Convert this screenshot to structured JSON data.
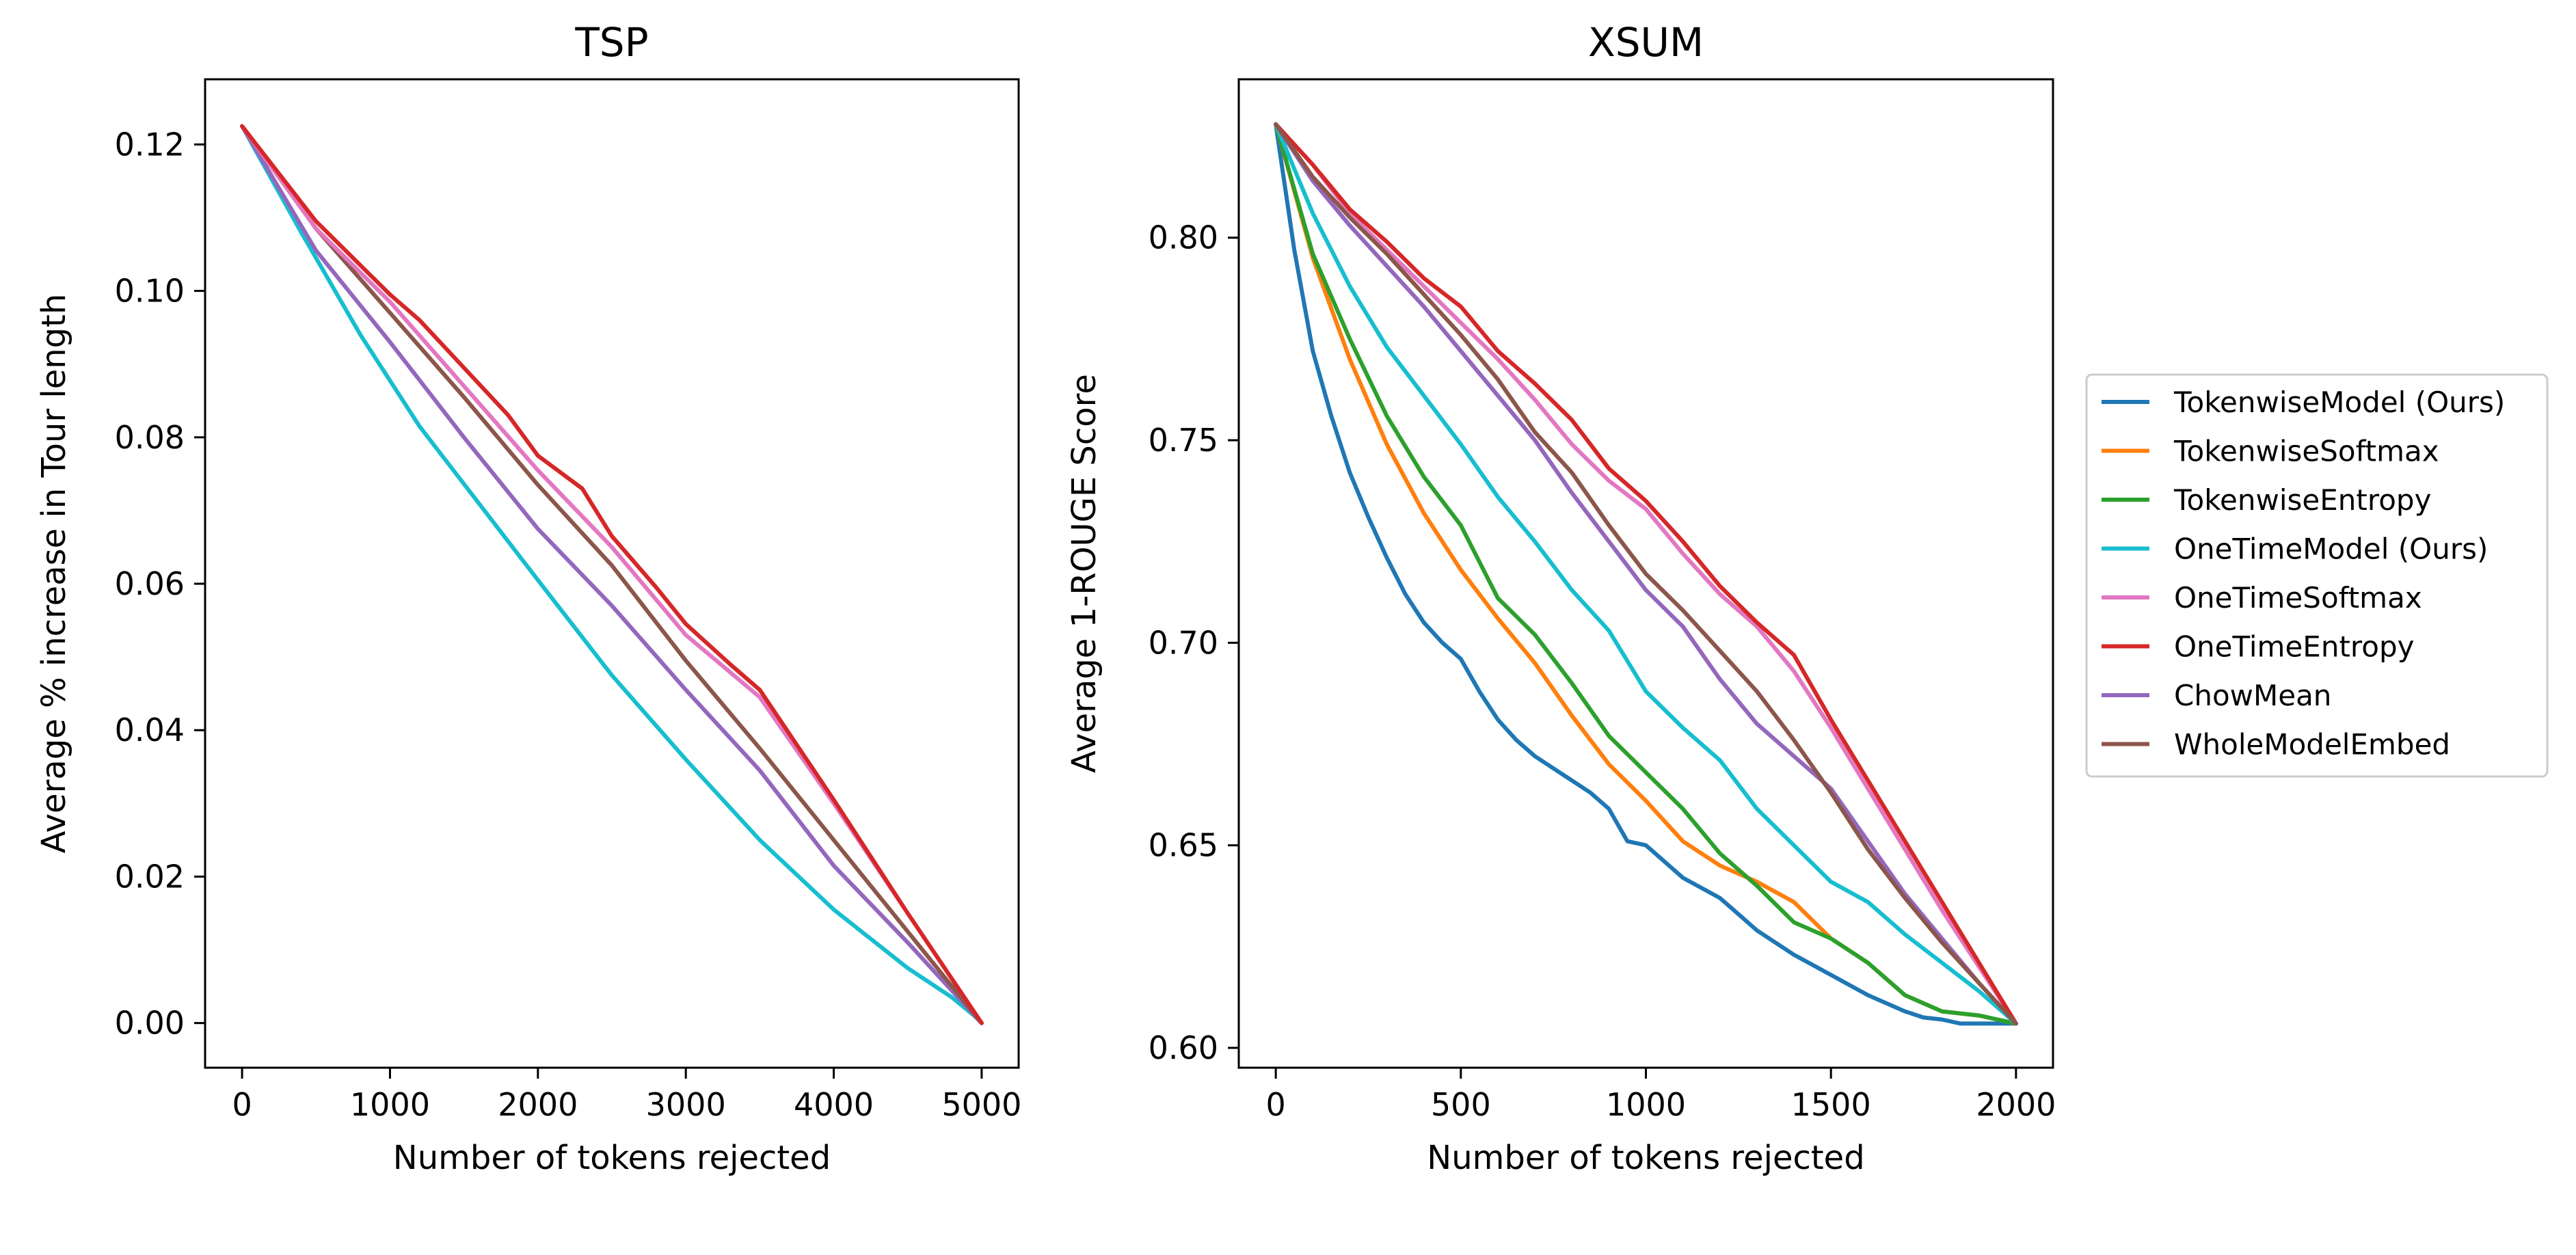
{
  "colors": {
    "TokenwiseModel (Ours)": "#1f77b4",
    "TokenwiseSoftmax": "#ff7f0e",
    "TokenwiseEntropy": "#2ca02c",
    "OneTimeModel (Ours)": "#17becf",
    "OneTimeSoftmax": "#e377c2",
    "OneTimeEntropy": "#d62728",
    "ChowMean": "#9467bd",
    "WholeModelEmbed": "#8c564b"
  },
  "legend": {
    "placement": "right",
    "entries": [
      "TokenwiseModel (Ours)",
      "TokenwiseSoftmax",
      "TokenwiseEntropy",
      "OneTimeModel (Ours)",
      "OneTimeSoftmax",
      "OneTimeEntropy",
      "ChowMean",
      "WholeModelEmbed"
    ]
  },
  "chart_data": [
    {
      "type": "line",
      "title": "TSP",
      "xlabel": "Number of tokens rejected",
      "ylabel": "Average % increase in Tour length",
      "xlim": [
        -250,
        5250
      ],
      "ylim": [
        -0.0061,
        0.1289
      ],
      "xticks": [
        0,
        1000,
        2000,
        3000,
        4000,
        5000
      ],
      "xtick_labels": [
        "0",
        "1000",
        "2000",
        "3000",
        "4000",
        "5000"
      ],
      "yticks": [
        0.0,
        0.02,
        0.04,
        0.06,
        0.08,
        0.1,
        0.12
      ],
      "ytick_labels": [
        "0.00",
        "0.02",
        "0.04",
        "0.06",
        "0.08",
        "0.10",
        "0.12"
      ],
      "grid": false,
      "series": [
        {
          "name": "OneTimeModel (Ours)",
          "x": [
            0,
            400,
            800,
            1200,
            1600,
            2000,
            2500,
            3000,
            3500,
            4000,
            4500,
            4800,
            4950,
            5000
          ],
          "y": [
            0.1225,
            0.108,
            0.094,
            0.0815,
            0.071,
            0.0605,
            0.0475,
            0.036,
            0.025,
            0.0155,
            0.0075,
            0.0035,
            0.001,
            0.0
          ]
        },
        {
          "name": "ChowMean",
          "x": [
            0,
            500,
            1000,
            1500,
            2000,
            2500,
            3000,
            3500,
            4000,
            4500,
            5000
          ],
          "y": [
            0.1225,
            0.1055,
            0.093,
            0.08,
            0.0675,
            0.057,
            0.0455,
            0.0345,
            0.0215,
            0.011,
            0.0
          ]
        },
        {
          "name": "WholeModelEmbed",
          "x": [
            0,
            500,
            1000,
            1500,
            2000,
            2500,
            3000,
            3500,
            4000,
            4500,
            5000
          ],
          "y": [
            0.1225,
            0.1085,
            0.097,
            0.0855,
            0.0735,
            0.0625,
            0.0495,
            0.0375,
            0.025,
            0.0125,
            0.0
          ]
        },
        {
          "name": "OneTimeSoftmax",
          "x": [
            0,
            500,
            1000,
            1500,
            2000,
            2500,
            3000,
            3500,
            4000,
            4500,
            5000
          ],
          "y": [
            0.1225,
            0.1085,
            0.0985,
            0.087,
            0.0755,
            0.065,
            0.053,
            0.0445,
            0.03,
            0.015,
            0.0
          ]
        },
        {
          "name": "OneTimeEntropy",
          "x": [
            0,
            500,
            800,
            1000,
            1200,
            1500,
            1800,
            2000,
            2300,
            2500,
            2800,
            3000,
            3300,
            3500,
            4000,
            4500,
            5000
          ],
          "y": [
            0.1225,
            0.1095,
            0.1035,
            0.0995,
            0.096,
            0.0895,
            0.083,
            0.0775,
            0.073,
            0.0665,
            0.0595,
            0.0545,
            0.049,
            0.0455,
            0.0305,
            0.015,
            0.0
          ]
        }
      ]
    },
    {
      "type": "line",
      "title": "XSUM",
      "xlabel": "Number of tokens rejected",
      "ylabel": "Average 1-ROUGE Score",
      "xlim": [
        -100,
        2100
      ],
      "ylim": [
        0.5951,
        0.8391
      ],
      "xticks": [
        0,
        500,
        1000,
        1500,
        2000
      ],
      "xtick_labels": [
        "0",
        "500",
        "1000",
        "1500",
        "2000"
      ],
      "yticks": [
        0.6,
        0.65,
        0.7,
        0.75,
        0.8
      ],
      "ytick_labels": [
        "0.60",
        "0.65",
        "0.70",
        "0.75",
        "0.80"
      ],
      "grid": false,
      "series": [
        {
          "name": "TokenwiseModel (Ours)",
          "x": [
            0,
            50,
            100,
            150,
            200,
            250,
            300,
            350,
            400,
            450,
            500,
            550,
            600,
            650,
            700,
            800,
            850,
            900,
            950,
            1000,
            1100,
            1200,
            1300,
            1400,
            1500,
            1600,
            1700,
            1750,
            1800,
            1850,
            1900,
            2000
          ],
          "y": [
            0.828,
            0.797,
            0.772,
            0.756,
            0.742,
            0.731,
            0.721,
            0.712,
            0.705,
            0.7,
            0.696,
            0.688,
            0.681,
            0.676,
            0.672,
            0.666,
            0.663,
            0.659,
            0.651,
            0.65,
            0.642,
            0.637,
            0.629,
            0.623,
            0.618,
            0.613,
            0.609,
            0.6075,
            0.607,
            0.606,
            0.606,
            0.606
          ]
        },
        {
          "name": "TokenwiseSoftmax",
          "x": [
            0,
            100,
            200,
            300,
            400,
            500,
            600,
            700,
            800,
            900,
            1000,
            1100,
            1200,
            1300,
            1400,
            1500,
            1600,
            1700,
            1800,
            1900,
            2000
          ],
          "y": [
            0.828,
            0.795,
            0.77,
            0.749,
            0.732,
            0.718,
            0.706,
            0.695,
            0.682,
            0.67,
            0.661,
            0.651,
            0.645,
            0.641,
            0.636,
            0.627,
            0.621,
            0.613,
            0.609,
            0.608,
            0.606
          ]
        },
        {
          "name": "TokenwiseEntropy",
          "x": [
            0,
            100,
            200,
            300,
            400,
            500,
            550,
            600,
            700,
            800,
            900,
            1000,
            1100,
            1200,
            1300,
            1400,
            1500,
            1600,
            1700,
            1800,
            1900,
            2000
          ],
          "y": [
            0.828,
            0.796,
            0.775,
            0.756,
            0.741,
            0.729,
            0.72,
            0.711,
            0.702,
            0.69,
            0.677,
            0.668,
            0.659,
            0.648,
            0.64,
            0.631,
            0.627,
            0.621,
            0.613,
            0.609,
            0.608,
            0.606
          ]
        },
        {
          "name": "OneTimeModel (Ours)",
          "x": [
            0,
            100,
            200,
            300,
            400,
            500,
            600,
            700,
            800,
            900,
            1000,
            1100,
            1200,
            1300,
            1400,
            1500,
            1600,
            1700,
            1800,
            1900,
            2000
          ],
          "y": [
            0.828,
            0.806,
            0.788,
            0.773,
            0.761,
            0.749,
            0.736,
            0.725,
            0.713,
            0.703,
            0.688,
            0.679,
            0.671,
            0.659,
            0.65,
            0.641,
            0.636,
            0.628,
            0.621,
            0.614,
            0.606
          ]
        },
        {
          "name": "OneTimeSoftmax",
          "x": [
            0,
            100,
            200,
            300,
            400,
            500,
            600,
            700,
            800,
            900,
            1000,
            1100,
            1200,
            1300,
            1400,
            1500,
            1600,
            1700,
            1800,
            1900,
            2000
          ],
          "y": [
            0.828,
            0.818,
            0.806,
            0.797,
            0.788,
            0.779,
            0.77,
            0.76,
            0.749,
            0.74,
            0.733,
            0.722,
            0.712,
            0.704,
            0.693,
            0.679,
            0.664,
            0.649,
            0.634,
            0.62,
            0.606
          ]
        },
        {
          "name": "OneTimeEntropy",
          "x": [
            0,
            100,
            200,
            300,
            400,
            500,
            600,
            700,
            800,
            900,
            1000,
            1100,
            1200,
            1300,
            1400,
            1500,
            1600,
            1700,
            1800,
            1900,
            2000
          ],
          "y": [
            0.828,
            0.818,
            0.807,
            0.799,
            0.79,
            0.783,
            0.772,
            0.764,
            0.755,
            0.743,
            0.735,
            0.725,
            0.714,
            0.705,
            0.697,
            0.681,
            0.666,
            0.651,
            0.636,
            0.621,
            0.606
          ]
        },
        {
          "name": "ChowMean",
          "x": [
            0,
            100,
            200,
            300,
            400,
            500,
            600,
            700,
            800,
            900,
            1000,
            1100,
            1200,
            1300,
            1400,
            1500,
            1600,
            1700,
            1800,
            1900,
            2000
          ],
          "y": [
            0.828,
            0.814,
            0.803,
            0.793,
            0.783,
            0.772,
            0.761,
            0.75,
            0.737,
            0.725,
            0.713,
            0.704,
            0.691,
            0.68,
            0.672,
            0.664,
            0.651,
            0.638,
            0.627,
            0.616,
            0.606
          ]
        },
        {
          "name": "WholeModelEmbed",
          "x": [
            0,
            100,
            200,
            300,
            400,
            500,
            600,
            700,
            800,
            900,
            1000,
            1100,
            1200,
            1300,
            1400,
            1500,
            1600,
            1700,
            1800,
            1900,
            2000
          ],
          "y": [
            0.828,
            0.815,
            0.805,
            0.796,
            0.786,
            0.776,
            0.765,
            0.752,
            0.742,
            0.729,
            0.717,
            0.708,
            0.698,
            0.688,
            0.676,
            0.663,
            0.649,
            0.637,
            0.626,
            0.616,
            0.606
          ]
        }
      ]
    }
  ]
}
